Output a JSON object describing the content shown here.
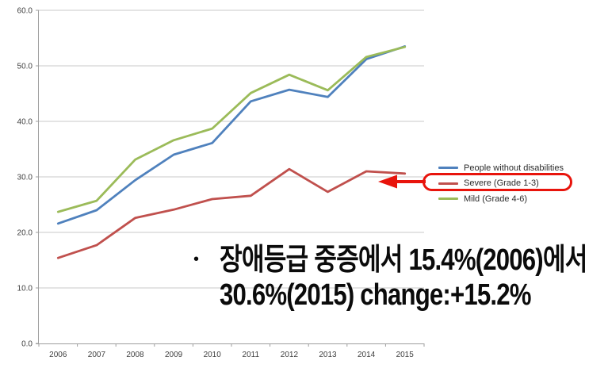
{
  "colors": {
    "series_blue": "#4F81BD",
    "series_red": "#C0504D",
    "series_green": "#9BBB59",
    "gridline": "#D3D3D3",
    "axis": "#9E9E9E",
    "axis_text": "#3F3F3F",
    "callout_red": "#E8140C",
    "annotation_text": "#0B0B0B"
  },
  "chart_data": {
    "type": "line",
    "title": "",
    "xlabel": "",
    "ylabel": "",
    "x": [
      "2006",
      "2007",
      "2008",
      "2009",
      "2010",
      "2011",
      "2012",
      "2013",
      "2014",
      "2015"
    ],
    "series": [
      {
        "name": "People without disabilities",
        "color": "#4F81BD",
        "values": [
          21.6,
          24.0,
          29.4,
          34.0,
          36.1,
          43.6,
          45.7,
          44.4,
          51.2,
          53.5
        ]
      },
      {
        "name": "Severe (Grade 1-3)",
        "color": "#C0504D",
        "values": [
          15.4,
          17.7,
          22.6,
          24.1,
          26.0,
          26.6,
          31.4,
          27.3,
          31.0,
          30.6
        ]
      },
      {
        "name": "Mild (Grade 4-6)",
        "color": "#9BBB59",
        "values": [
          23.7,
          25.7,
          33.1,
          36.6,
          38.7,
          45.1,
          48.4,
          45.6,
          51.6,
          53.4
        ]
      }
    ],
    "ylim": [
      0,
      60
    ],
    "yticks": [
      0,
      10,
      20,
      30,
      40,
      50,
      60
    ],
    "ytick_labels": [
      "0.0",
      "10.0",
      "20.0",
      "30.0",
      "40.0",
      "50.0",
      "60.0"
    ],
    "grid": true,
    "legend_position": "right-middle",
    "highlighted_series": "Severe (Grade 1-3)"
  },
  "annotation": {
    "bullet": "•",
    "line1": "장애등급 중증에서 15.4%(2006)에서",
    "line2": "30.6%(2015) change:+15.2%"
  }
}
